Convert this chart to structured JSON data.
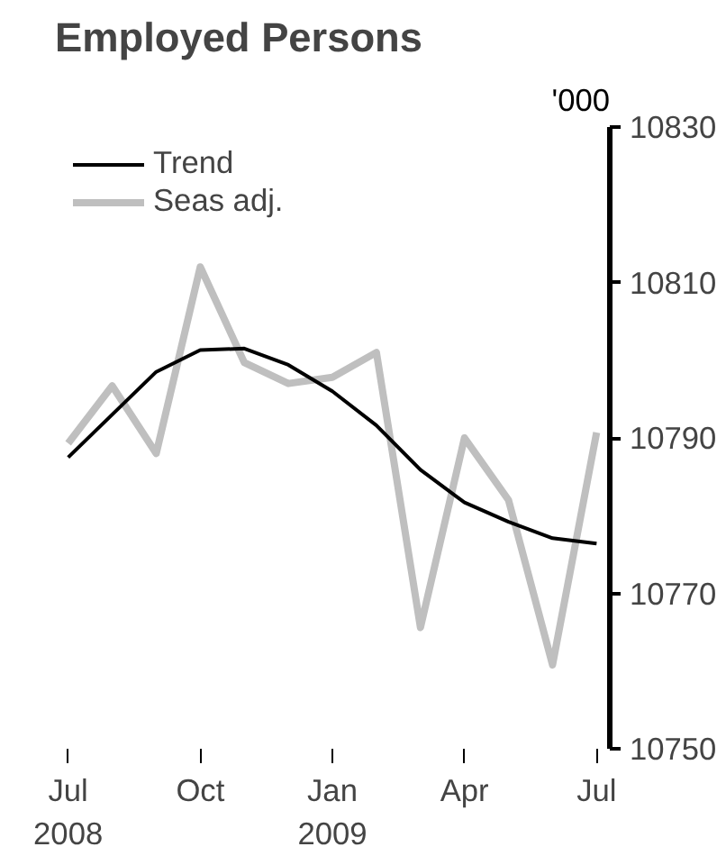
{
  "chart_data": {
    "type": "line",
    "title": "Employed Persons",
    "ylabel": "'000",
    "x": [
      "2008-07",
      "2008-08",
      "2008-09",
      "2008-10",
      "2008-11",
      "2008-12",
      "2009-01",
      "2009-02",
      "2009-03",
      "2009-04",
      "2009-05",
      "2009-06",
      "2009-07"
    ],
    "series": [
      {
        "name": "Trend",
        "color": "#000000",
        "values": [
          10787.5,
          10793,
          10798.5,
          10801.3,
          10801.5,
          10799.4,
          10796,
          10791.6,
          10785.9,
          10781.7,
          10779.2,
          10777.1,
          10776.4
        ]
      },
      {
        "name": "Seas adj.",
        "color": "#bfbfbf",
        "values": [
          10789.3,
          10796.7,
          10788,
          10812,
          10799.7,
          10797,
          10797.8,
          10801,
          10765.6,
          10790,
          10782,
          10760.8,
          10790.7
        ]
      }
    ],
    "xlim": [
      "2008-07",
      "2009-07"
    ],
    "xticks": [
      {
        "value": "2008-07",
        "label": "Jul\n2008"
      },
      {
        "value": "2008-10",
        "label": "Oct"
      },
      {
        "value": "2009-01",
        "label": "Jan\n2009"
      },
      {
        "value": "2009-04",
        "label": "Apr"
      },
      {
        "value": "2009-07",
        "label": "Jul"
      }
    ],
    "ylim": [
      10750,
      10830
    ],
    "yticks": [
      10750,
      10770,
      10790,
      10810,
      10830
    ],
    "grid": false,
    "legend": "top left",
    "marker": "none",
    "line_style": "solid"
  }
}
